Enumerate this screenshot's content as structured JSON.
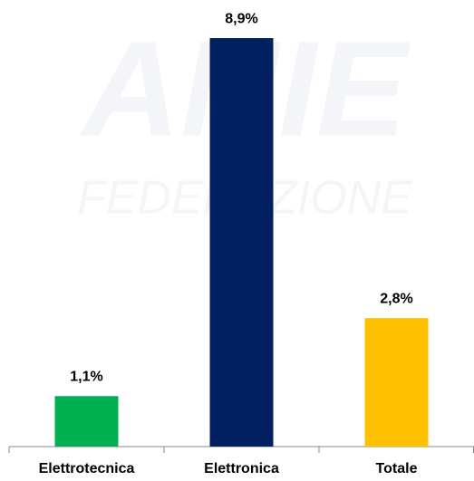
{
  "chart_data": {
    "type": "bar",
    "watermark": [
      "ANIE",
      "FEDERAZIONE"
    ],
    "categories": [
      "Elettrotecnica",
      "Elettronica",
      "Totale"
    ],
    "values": [
      1.1,
      8.9,
      2.8
    ],
    "value_labels": [
      "1,1%",
      "8,9%",
      "2,8%"
    ],
    "colors": [
      "#00b050",
      "#002060",
      "#ffc000"
    ],
    "ylim": [
      0,
      9
    ]
  }
}
